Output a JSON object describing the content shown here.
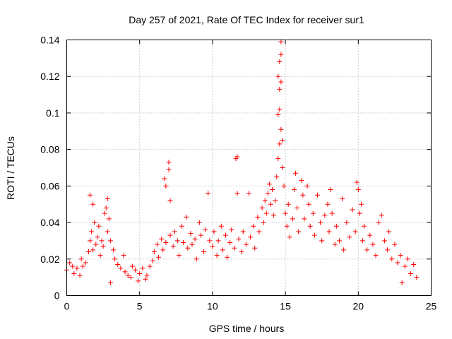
{
  "chart_data": {
    "type": "scatter",
    "title": "Day 257 of 2021, Rate Of TEC Index for receiver sur1",
    "xlabel": "GPS time / hours",
    "ylabel": "ROTI / TECUs",
    "xlim": [
      0,
      25
    ],
    "ylim": [
      0,
      0.14
    ],
    "xticks": [
      0,
      5,
      10,
      15,
      20,
      25
    ],
    "xtick_labels": [
      "0",
      "5",
      "10",
      "15",
      "20",
      "25"
    ],
    "yticks": [
      0,
      0.02,
      0.04,
      0.06,
      0.08,
      0.1,
      0.12,
      0.14
    ],
    "ytick_labels": [
      "0",
      "0.02",
      "0.04",
      "0.06",
      "0.08",
      "0.1",
      "0.12",
      "0.14"
    ],
    "grid": true,
    "marker": "+",
    "color": "#ff0000",
    "series": [
      {
        "name": "ROTI",
        "points": [
          [
            0.0,
            0.014
          ],
          [
            0.2,
            0.018
          ],
          [
            0.4,
            0.016
          ],
          [
            0.5,
            0.012
          ],
          [
            0.7,
            0.015
          ],
          [
            0.9,
            0.011
          ],
          [
            1.0,
            0.02
          ],
          [
            1.1,
            0.016
          ],
          [
            1.3,
            0.018
          ],
          [
            1.5,
            0.024
          ],
          [
            1.6,
            0.055
          ],
          [
            1.6,
            0.03
          ],
          [
            1.7,
            0.035
          ],
          [
            1.8,
            0.05
          ],
          [
            1.8,
            0.025
          ],
          [
            1.9,
            0.04
          ],
          [
            2.0,
            0.028
          ],
          [
            2.1,
            0.032
          ],
          [
            2.2,
            0.038
          ],
          [
            2.3,
            0.022
          ],
          [
            2.4,
            0.03
          ],
          [
            2.5,
            0.027
          ],
          [
            2.6,
            0.045
          ],
          [
            2.7,
            0.048
          ],
          [
            2.8,
            0.053
          ],
          [
            2.8,
            0.035
          ],
          [
            2.9,
            0.042
          ],
          [
            3.0,
            0.03
          ],
          [
            3.0,
            0.007
          ],
          [
            3.2,
            0.025
          ],
          [
            3.3,
            0.02
          ],
          [
            3.5,
            0.017
          ],
          [
            3.7,
            0.015
          ],
          [
            3.9,
            0.022
          ],
          [
            4.0,
            0.013
          ],
          [
            4.2,
            0.011
          ],
          [
            4.4,
            0.01
          ],
          [
            4.5,
            0.016
          ],
          [
            4.7,
            0.014
          ],
          [
            4.9,
            0.008
          ],
          [
            5.0,
            0.012
          ],
          [
            5.2,
            0.015
          ],
          [
            5.4,
            0.009
          ],
          [
            5.5,
            0.011
          ],
          [
            5.7,
            0.016
          ],
          [
            5.9,
            0.019
          ],
          [
            6.0,
            0.024
          ],
          [
            6.2,
            0.028
          ],
          [
            6.3,
            0.021
          ],
          [
            6.5,
            0.031
          ],
          [
            6.6,
            0.025
          ],
          [
            6.7,
            0.064
          ],
          [
            6.8,
            0.06
          ],
          [
            6.8,
            0.029
          ],
          [
            7.0,
            0.073
          ],
          [
            7.0,
            0.069
          ],
          [
            7.1,
            0.052
          ],
          [
            7.1,
            0.033
          ],
          [
            7.3,
            0.027
          ],
          [
            7.4,
            0.035
          ],
          [
            7.6,
            0.03
          ],
          [
            7.7,
            0.022
          ],
          [
            7.9,
            0.038
          ],
          [
            8.0,
            0.029
          ],
          [
            8.2,
            0.043
          ],
          [
            8.3,
            0.026
          ],
          [
            8.5,
            0.034
          ],
          [
            8.6,
            0.028
          ],
          [
            8.8,
            0.031
          ],
          [
            8.9,
            0.02
          ],
          [
            9.1,
            0.04
          ],
          [
            9.2,
            0.033
          ],
          [
            9.4,
            0.024
          ],
          [
            9.5,
            0.036
          ],
          [
            9.7,
            0.056
          ],
          [
            9.8,
            0.03
          ],
          [
            10.0,
            0.027
          ],
          [
            10.1,
            0.035
          ],
          [
            10.3,
            0.022
          ],
          [
            10.4,
            0.03
          ],
          [
            10.6,
            0.038
          ],
          [
            10.7,
            0.025
          ],
          [
            10.9,
            0.033
          ],
          [
            11.0,
            0.021
          ],
          [
            11.2,
            0.029
          ],
          [
            11.3,
            0.036
          ],
          [
            11.5,
            0.026
          ],
          [
            11.6,
            0.075
          ],
          [
            11.7,
            0.076
          ],
          [
            11.7,
            0.056
          ],
          [
            11.8,
            0.031
          ],
          [
            12.0,
            0.024
          ],
          [
            12.1,
            0.035
          ],
          [
            12.3,
            0.028
          ],
          [
            12.5,
            0.056
          ],
          [
            12.6,
            0.032
          ],
          [
            12.8,
            0.038
          ],
          [
            12.9,
            0.026
          ],
          [
            13.1,
            0.043
          ],
          [
            13.2,
            0.035
          ],
          [
            13.4,
            0.048
          ],
          [
            13.5,
            0.04
          ],
          [
            13.6,
            0.052
          ],
          [
            13.7,
            0.045
          ],
          [
            13.8,
            0.056
          ],
          [
            13.9,
            0.061
          ],
          [
            14.0,
            0.05
          ],
          [
            14.1,
            0.058
          ],
          [
            14.2,
            0.044
          ],
          [
            14.3,
            0.052
          ],
          [
            14.4,
            0.065
          ],
          [
            14.5,
            0.075
          ],
          [
            14.5,
            0.099
          ],
          [
            14.5,
            0.12
          ],
          [
            14.6,
            0.128
          ],
          [
            14.6,
            0.113
          ],
          [
            14.6,
            0.102
          ],
          [
            14.6,
            0.083
          ],
          [
            14.7,
            0.139
          ],
          [
            14.7,
            0.132
          ],
          [
            14.7,
            0.117
          ],
          [
            14.7,
            0.091
          ],
          [
            14.8,
            0.085
          ],
          [
            14.8,
            0.07
          ],
          [
            14.9,
            0.06
          ],
          [
            15.0,
            0.045
          ],
          [
            15.1,
            0.038
          ],
          [
            15.2,
            0.05
          ],
          [
            15.3,
            0.032
          ],
          [
            15.5,
            0.042
          ],
          [
            15.6,
            0.058
          ],
          [
            15.7,
            0.067
          ],
          [
            15.8,
            0.048
          ],
          [
            15.9,
            0.035
          ],
          [
            16.1,
            0.063
          ],
          [
            16.2,
            0.055
          ],
          [
            16.3,
            0.042
          ],
          [
            16.5,
            0.06
          ],
          [
            16.6,
            0.05
          ],
          [
            16.7,
            0.038
          ],
          [
            16.9,
            0.045
          ],
          [
            17.0,
            0.033
          ],
          [
            17.2,
            0.055
          ],
          [
            17.4,
            0.04
          ],
          [
            17.5,
            0.03
          ],
          [
            17.7,
            0.044
          ],
          [
            17.9,
            0.05
          ],
          [
            18.0,
            0.035
          ],
          [
            18.1,
            0.058
          ],
          [
            18.2,
            0.045
          ],
          [
            18.4,
            0.028
          ],
          [
            18.5,
            0.038
          ],
          [
            18.7,
            0.03
          ],
          [
            18.9,
            0.053
          ],
          [
            19.0,
            0.025
          ],
          [
            19.2,
            0.04
          ],
          [
            19.4,
            0.032
          ],
          [
            19.6,
            0.047
          ],
          [
            19.8,
            0.035
          ],
          [
            19.9,
            0.062
          ],
          [
            20.0,
            0.058
          ],
          [
            20.1,
            0.045
          ],
          [
            20.2,
            0.05
          ],
          [
            20.3,
            0.03
          ],
          [
            20.4,
            0.038
          ],
          [
            20.6,
            0.025
          ],
          [
            20.8,
            0.033
          ],
          [
            21.0,
            0.028
          ],
          [
            21.2,
            0.022
          ],
          [
            21.4,
            0.04
          ],
          [
            21.6,
            0.044
          ],
          [
            21.8,
            0.03
          ],
          [
            22.0,
            0.025
          ],
          [
            22.1,
            0.035
          ],
          [
            22.3,
            0.02
          ],
          [
            22.5,
            0.028
          ],
          [
            22.7,
            0.018
          ],
          [
            22.9,
            0.022
          ],
          [
            23.0,
            0.007
          ],
          [
            23.2,
            0.016
          ],
          [
            23.4,
            0.02
          ],
          [
            23.6,
            0.012
          ],
          [
            23.8,
            0.017
          ],
          [
            24.0,
            0.01
          ]
        ]
      }
    ]
  }
}
